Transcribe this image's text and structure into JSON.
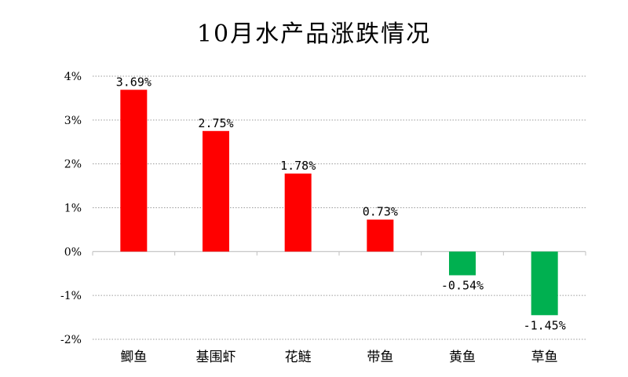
{
  "chart_data": {
    "type": "bar",
    "title": "10月水产品涨跌情况",
    "categories": [
      "鲫鱼",
      "基围虾",
      "花鲢",
      "带鱼",
      "黄鱼",
      "草鱼"
    ],
    "values": [
      3.69,
      2.75,
      1.78,
      0.73,
      -0.54,
      -1.45
    ],
    "data_labels": [
      "3.69%",
      "2.75%",
      "1.78%",
      "0.73%",
      "-0.54%",
      "-1.45%"
    ],
    "y_ticks": [
      4,
      3,
      2,
      1,
      0,
      -1,
      -2
    ],
    "y_tick_labels": [
      "4%",
      "3%",
      "2%",
      "1%",
      "0%",
      "-1%",
      "-2%"
    ],
    "ylim": [
      -2,
      4
    ],
    "grid": true,
    "legend": "none",
    "colors": {
      "positive": "#ff0000",
      "negative": "#00b050",
      "grid": "#9a9a9a",
      "axis": "#bfbfbf"
    }
  }
}
